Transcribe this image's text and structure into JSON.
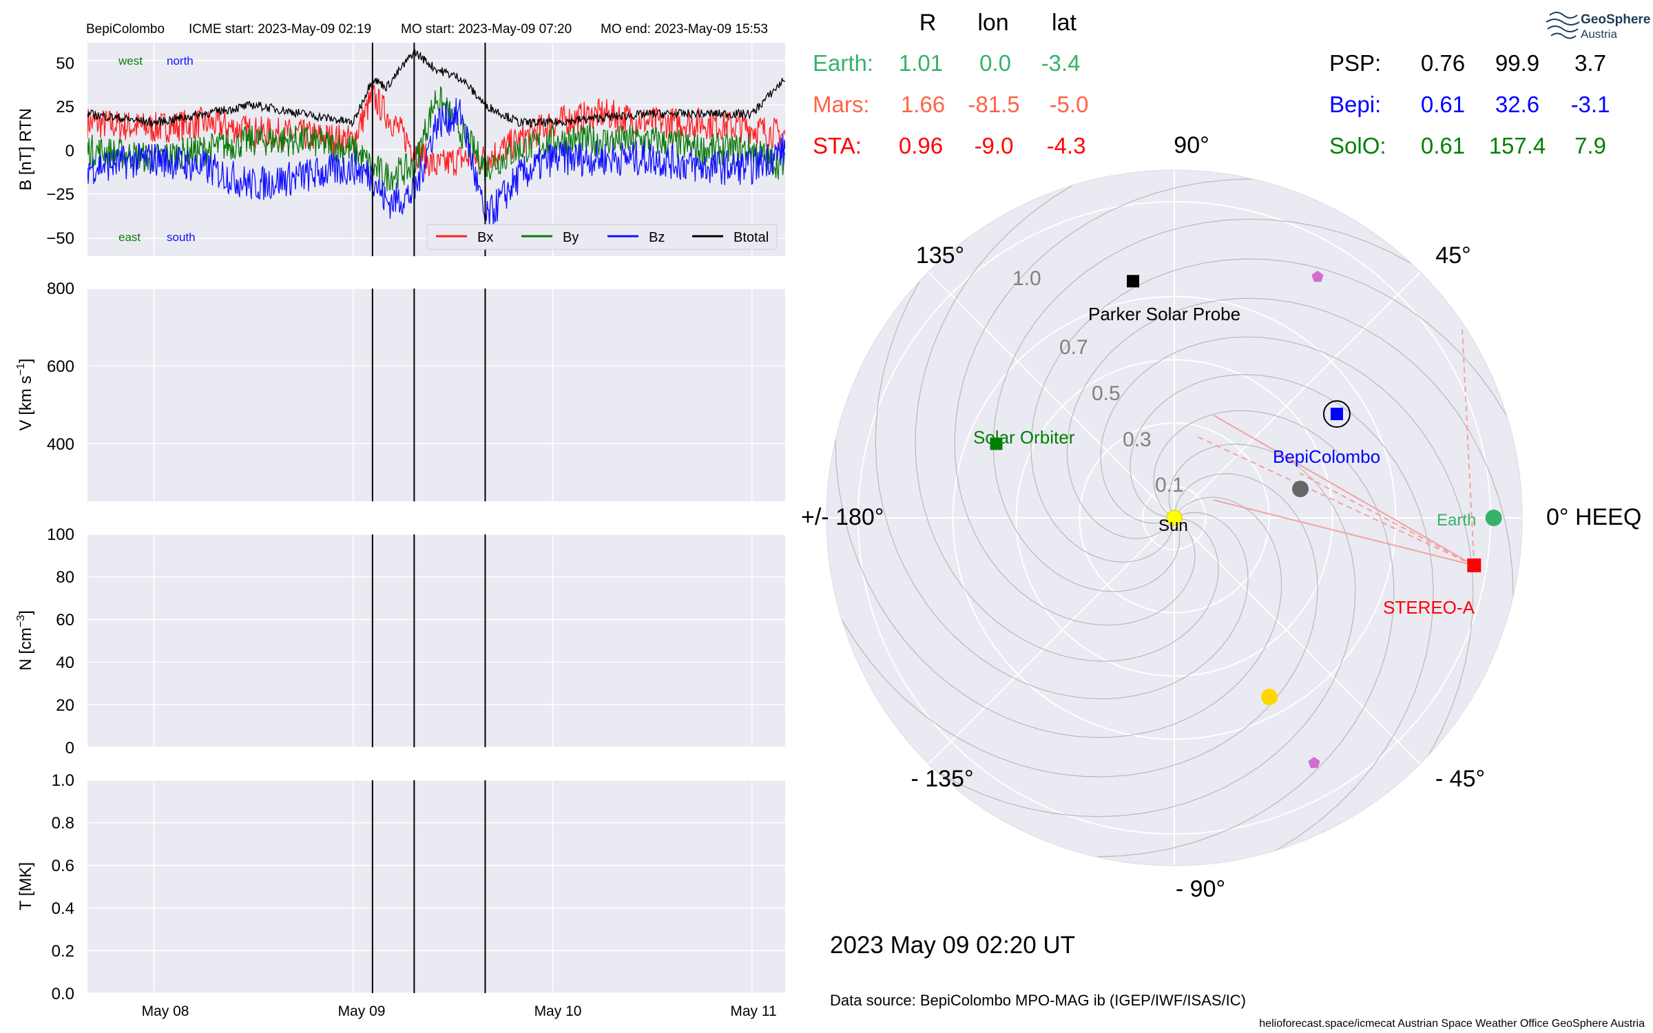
{
  "header": {
    "spacecraft": "BepiColombo",
    "icme_start": "ICME start: 2023-May-09 02:19",
    "mo_start": "MO start: 2023-May-09 07:20",
    "mo_end": "MO end: 2023-May-09 15:53"
  },
  "colors": {
    "bx": "#ff1f1f",
    "by": "#0b7a0b",
    "bz": "#1010ff",
    "btot": "#000000",
    "axes_bg": "#eaeaf2",
    "earth": "#35b36b",
    "mars": "#ff6347",
    "sta": "#ff0000",
    "bepi": "#0000ff",
    "solo": "#008000",
    "psp": "#000000"
  },
  "panel_b": {
    "ylabel": "B [nT] RTN",
    "yticks": [
      "50",
      "25",
      "0",
      "−25",
      "−50"
    ],
    "corner_labels": {
      "west": "west",
      "north": "north",
      "east": "east",
      "south": "south"
    },
    "legend": [
      "Bx",
      "By",
      "Bz",
      "Btotal"
    ]
  },
  "panel_v": {
    "ylabel_main": "V [km s",
    "ylabel_sup": "−1",
    "ylabel_end": "]",
    "yticks": [
      "800",
      "600",
      "400"
    ]
  },
  "panel_n": {
    "ylabel_main": "N [cm",
    "ylabel_sup": "−3",
    "ylabel_end": "]",
    "yticks": [
      "100",
      "80",
      "60",
      "40",
      "20",
      "0"
    ]
  },
  "panel_t": {
    "ylabel": "T [MK]",
    "yticks": [
      "1.0",
      "0.8",
      "0.6",
      "0.4",
      "0.2",
      "0.0"
    ]
  },
  "xticks": [
    "May 08",
    "May 09",
    "May 10",
    "May 11"
  ],
  "positions_table": {
    "headers": [
      "R",
      "lon",
      "lat"
    ],
    "rows_left": [
      {
        "name": "Earth:",
        "r": "1.01",
        "lon": "0.0",
        "lat": "-3.4"
      },
      {
        "name": "Mars:",
        "r": "1.66",
        "lon": "-81.5",
        "lat": "-5.0"
      },
      {
        "name": "STA:",
        "r": "0.96",
        "lon": "-9.0",
        "lat": "-4.3"
      }
    ],
    "rows_right": [
      {
        "name": "PSP:",
        "r": "0.76",
        "lon": "99.9",
        "lat": "3.7"
      },
      {
        "name": "Bepi:",
        "r": "0.61",
        "lon": "32.6",
        "lat": "-3.1"
      },
      {
        "name": "SolO:",
        "r": "0.61",
        "lon": "157.4",
        "lat": "7.9"
      }
    ]
  },
  "polar": {
    "angle_labels": {
      "a90": "90°",
      "a45": "45°",
      "a0": "0° HEEQ",
      "am45": "- 45°",
      "am90": "- 90°",
      "am135": "- 135°",
      "a180": "+/- 180°",
      "a135": "135°"
    },
    "radial_labels": [
      "0.1",
      "0.3",
      "0.5",
      "0.7",
      "1.0"
    ],
    "labels": {
      "sun": "Sun",
      "earth": "Earth",
      "sta": "STEREO-A",
      "bepi": "BepiColombo",
      "solo": "Solar Orbiter",
      "psp": "Parker Solar Probe"
    },
    "planet_colors": {
      "mercury": "#666666",
      "venus": "#ffd700",
      "other": "#d36bd3"
    }
  },
  "footer": {
    "timestamp": "2023 May 09  02:20 UT",
    "data_source": "Data source: BepiColombo MPO-MAG ib (IGEP/IWF/ISAS/IC)",
    "credits": "helioforecast.space/icmecat   Austrian Space Weather Office   GeoSphere Austria"
  },
  "logo": {
    "line1": "GeoSphere",
    "line2": "Austria"
  },
  "chart_data": [
    {
      "type": "line",
      "title": "",
      "xlabel": "",
      "ylabel": "B [nT] RTN",
      "x_range": [
        "2023-05-07 16:00",
        "2023-05-11 04:00"
      ],
      "ylim": [
        -60,
        60
      ],
      "grid": true,
      "legend_position": "bottom-right",
      "event_lines": [
        "2023-05-09 02:19",
        "2023-05-09 07:20",
        "2023-05-09 15:53"
      ],
      "x": [
        "2023-05-07 16:00",
        "2023-05-08 00:00",
        "2023-05-08 06:00",
        "2023-05-08 12:00",
        "2023-05-08 18:00",
        "2023-05-09 00:00",
        "2023-05-09 02:19",
        "2023-05-09 04:00",
        "2023-05-09 07:20",
        "2023-05-09 10:00",
        "2023-05-09 13:00",
        "2023-05-09 15:53",
        "2023-05-09 20:00",
        "2023-05-10 00:00",
        "2023-05-10 06:00",
        "2023-05-10 12:00",
        "2023-05-10 18:00",
        "2023-05-11 00:00",
        "2023-05-11 04:00"
      ],
      "series": [
        {
          "name": "Bx",
          "values": [
            15,
            12,
            15,
            10,
            8,
            5,
            30,
            20,
            0,
            -10,
            -5,
            -5,
            5,
            15,
            20,
            15,
            15,
            12,
            8
          ]
        },
        {
          "name": "By",
          "values": [
            0,
            -5,
            0,
            5,
            5,
            0,
            -10,
            -15,
            -10,
            30,
            10,
            -10,
            0,
            5,
            5,
            5,
            0,
            0,
            -10
          ]
        },
        {
          "name": "Bz",
          "values": [
            -10,
            -5,
            -10,
            -20,
            -15,
            -10,
            -15,
            -30,
            -25,
            15,
            20,
            -40,
            -15,
            -5,
            -5,
            -5,
            -10,
            -10,
            0
          ]
        },
        {
          "name": "Btotal",
          "values": [
            20,
            15,
            20,
            25,
            20,
            15,
            40,
            35,
            55,
            45,
            40,
            25,
            15,
            15,
            18,
            20,
            20,
            20,
            40
          ]
        }
      ]
    },
    {
      "type": "line",
      "ylabel": "V [km s−1]",
      "ylim": [
        250,
        800
      ],
      "series": []
    },
    {
      "type": "line",
      "ylabel": "N [cm−3]",
      "ylim": [
        0,
        100
      ],
      "series": []
    },
    {
      "type": "line",
      "ylabel": "T [MK]",
      "ylim": [
        0,
        1.0
      ],
      "series": []
    },
    {
      "type": "scatter",
      "title": "",
      "coordinate_system": "HEEQ polar (r in AU, lon in degrees)",
      "rlim": [
        0,
        1.1
      ],
      "points": [
        {
          "name": "Earth",
          "r": 1.01,
          "lon": 0.0
        },
        {
          "name": "STEREO-A",
          "r": 0.96,
          "lon": -9.0
        },
        {
          "name": "BepiColombo",
          "r": 0.61,
          "lon": 32.6
        },
        {
          "name": "Solar Orbiter",
          "r": 0.61,
          "lon": 157.4
        },
        {
          "name": "Parker Solar Probe",
          "r": 0.76,
          "lon": 99.9
        }
      ]
    }
  ]
}
